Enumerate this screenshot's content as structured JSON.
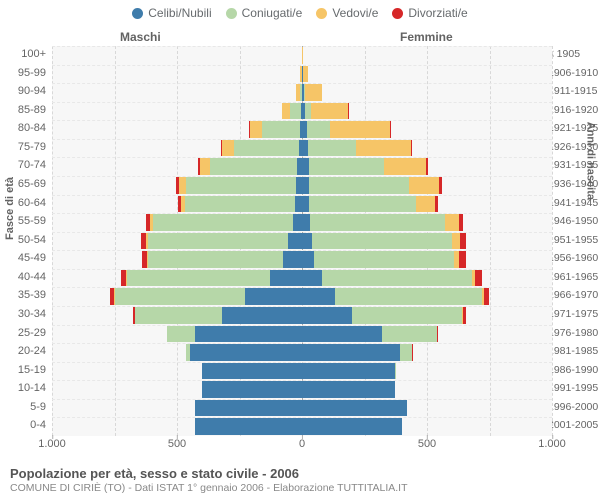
{
  "legend": [
    {
      "label": "Celibi/Nubili",
      "color": "#3f7cab"
    },
    {
      "label": "Coniugati/e",
      "color": "#b6d7a8"
    },
    {
      "label": "Vedovi/e",
      "color": "#f6c567"
    },
    {
      "label": "Divorziati/e",
      "color": "#d62728"
    }
  ],
  "headers": {
    "male": "Maschi",
    "female": "Femmine"
  },
  "axis_left_title": "Fasce di età",
  "axis_right_title": "Anni di nascita",
  "x_ticks": [
    {
      "pos": 0,
      "label": "1.000"
    },
    {
      "pos": 125,
      "label": "500"
    },
    {
      "pos": 250,
      "label": "0"
    },
    {
      "pos": 375,
      "label": "500"
    },
    {
      "pos": 500,
      "label": "1.000"
    }
  ],
  "grid_positions": [
    0,
    62.5,
    125,
    187.5,
    250,
    312.5,
    375,
    437.5,
    500
  ],
  "max_value": 1000,
  "plot_bg": "#f7f7f7",
  "footer": {
    "title": "Popolazione per età, sesso e stato civile - 2006",
    "sub": "COMUNE DI CIRIÈ (TO) - Dati ISTAT 1° gennaio 2006 - Elaborazione TUTTITALIA.IT"
  },
  "rows": [
    {
      "age": "100+",
      "birth": "≤ 1905",
      "m": {
        "c": 0,
        "co": 0,
        "v": 2,
        "d": 0
      },
      "f": {
        "c": 0,
        "co": 0,
        "v": 3,
        "d": 0
      }
    },
    {
      "age": "95-99",
      "birth": "1906-1910",
      "m": {
        "c": 1,
        "co": 1,
        "v": 6,
        "d": 0
      },
      "f": {
        "c": 2,
        "co": 0,
        "v": 22,
        "d": 0
      }
    },
    {
      "age": "90-94",
      "birth": "1911-1915",
      "m": {
        "c": 2,
        "co": 8,
        "v": 15,
        "d": 0
      },
      "f": {
        "c": 6,
        "co": 4,
        "v": 70,
        "d": 0
      }
    },
    {
      "age": "85-89",
      "birth": "1916-1920",
      "m": {
        "c": 4,
        "co": 45,
        "v": 30,
        "d": 0
      },
      "f": {
        "c": 12,
        "co": 22,
        "v": 150,
        "d": 1
      }
    },
    {
      "age": "80-84",
      "birth": "1921-1925",
      "m": {
        "c": 10,
        "co": 150,
        "v": 50,
        "d": 2
      },
      "f": {
        "c": 20,
        "co": 90,
        "v": 240,
        "d": 3
      }
    },
    {
      "age": "75-79",
      "birth": "1926-1930",
      "m": {
        "c": 14,
        "co": 260,
        "v": 48,
        "d": 4
      },
      "f": {
        "c": 24,
        "co": 190,
        "v": 220,
        "d": 6
      }
    },
    {
      "age": "70-74",
      "birth": "1931-1935",
      "m": {
        "c": 20,
        "co": 350,
        "v": 40,
        "d": 8
      },
      "f": {
        "c": 26,
        "co": 300,
        "v": 170,
        "d": 8
      }
    },
    {
      "age": "65-69",
      "birth": "1936-1940",
      "m": {
        "c": 26,
        "co": 440,
        "v": 28,
        "d": 10
      },
      "f": {
        "c": 28,
        "co": 400,
        "v": 120,
        "d": 10
      }
    },
    {
      "age": "60-64",
      "birth": "1941-1945",
      "m": {
        "c": 28,
        "co": 440,
        "v": 18,
        "d": 12
      },
      "f": {
        "c": 26,
        "co": 430,
        "v": 75,
        "d": 12
      }
    },
    {
      "age": "55-59",
      "birth": "1946-1950",
      "m": {
        "c": 38,
        "co": 560,
        "v": 12,
        "d": 16
      },
      "f": {
        "c": 32,
        "co": 540,
        "v": 55,
        "d": 18
      }
    },
    {
      "age": "50-54",
      "birth": "1951-1955",
      "m": {
        "c": 55,
        "co": 560,
        "v": 8,
        "d": 20
      },
      "f": {
        "c": 38,
        "co": 560,
        "v": 34,
        "d": 22
      }
    },
    {
      "age": "45-49",
      "birth": "1956-1960",
      "m": {
        "c": 75,
        "co": 540,
        "v": 5,
        "d": 22
      },
      "f": {
        "c": 48,
        "co": 560,
        "v": 20,
        "d": 26
      }
    },
    {
      "age": "40-44",
      "birth": "1961-1965",
      "m": {
        "c": 130,
        "co": 570,
        "v": 3,
        "d": 22
      },
      "f": {
        "c": 80,
        "co": 600,
        "v": 12,
        "d": 28
      }
    },
    {
      "age": "35-39",
      "birth": "1966-1970",
      "m": {
        "c": 230,
        "co": 520,
        "v": 2,
        "d": 16
      },
      "f": {
        "c": 130,
        "co": 590,
        "v": 6,
        "d": 22
      }
    },
    {
      "age": "30-34",
      "birth": "1971-1975",
      "m": {
        "c": 320,
        "co": 350,
        "v": 0,
        "d": 8
      },
      "f": {
        "c": 200,
        "co": 440,
        "v": 2,
        "d": 12
      }
    },
    {
      "age": "25-29",
      "birth": "1976-1980",
      "m": {
        "c": 430,
        "co": 110,
        "v": 0,
        "d": 2
      },
      "f": {
        "c": 320,
        "co": 220,
        "v": 0,
        "d": 4
      }
    },
    {
      "age": "20-24",
      "birth": "1981-1985",
      "m": {
        "c": 450,
        "co": 14,
        "v": 0,
        "d": 0
      },
      "f": {
        "c": 390,
        "co": 50,
        "v": 0,
        "d": 1
      }
    },
    {
      "age": "15-19",
      "birth": "1986-1990",
      "m": {
        "c": 400,
        "co": 0,
        "v": 0,
        "d": 0
      },
      "f": {
        "c": 370,
        "co": 2,
        "v": 0,
        "d": 0
      }
    },
    {
      "age": "10-14",
      "birth": "1991-1995",
      "m": {
        "c": 400,
        "co": 0,
        "v": 0,
        "d": 0
      },
      "f": {
        "c": 370,
        "co": 0,
        "v": 0,
        "d": 0
      }
    },
    {
      "age": "5-9",
      "birth": "1996-2000",
      "m": {
        "c": 430,
        "co": 0,
        "v": 0,
        "d": 0
      },
      "f": {
        "c": 420,
        "co": 0,
        "v": 0,
        "d": 0
      }
    },
    {
      "age": "0-4",
      "birth": "2001-2005",
      "m": {
        "c": 430,
        "co": 0,
        "v": 0,
        "d": 0
      },
      "f": {
        "c": 400,
        "co": 0,
        "v": 0,
        "d": 0
      }
    }
  ]
}
